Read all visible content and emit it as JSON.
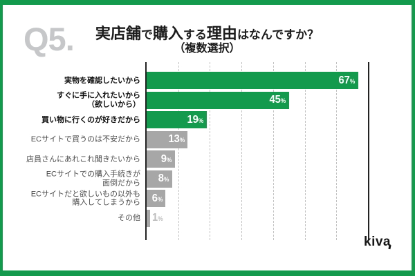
{
  "question_number": "Q5.",
  "title": {
    "line1": "実店舗で購入する理由はなんですか？",
    "line1_segments": [
      {
        "text": "実店舗",
        "emph": true
      },
      {
        "text": "で",
        "emph": false
      },
      {
        "text": "購入",
        "emph": true
      },
      {
        "text": "する",
        "emph": false
      },
      {
        "text": "理由",
        "emph": true
      },
      {
        "text": "はなんですか？",
        "emph": false
      }
    ],
    "line2": "（複数選択）"
  },
  "chart_data": {
    "type": "bar",
    "orientation": "horizontal",
    "title": "実店舗で購入する理由はなんですか？（複数選択）",
    "unit": "%",
    "xlim": [
      0,
      70
    ],
    "gridline_interval": 10,
    "grid": "dashed-vertical",
    "categories": [
      "実物を確認したいから",
      "すぐに手に入れたいから（欲しいから）",
      "買い物に行くのが好きだから",
      "ECサイトで買うのは不安だから",
      "店員さんにあれこれ聞きたいから",
      "ECサイトでの購入手続きが面倒だから",
      "ECサイトだと欲しいもの以外も購入してしまうから",
      "その他"
    ],
    "values": [
      67,
      45,
      19,
      13,
      9,
      8,
      6,
      1
    ],
    "rows": [
      {
        "label_lines": [
          "実物を確認したいから"
        ],
        "value": 67,
        "display": "67",
        "highlight": true
      },
      {
        "label_lines": [
          "すぐに手に入れたいから",
          "（欲しいから）"
        ],
        "value": 45,
        "display": "45",
        "highlight": true
      },
      {
        "label_lines": [
          "買い物に行くのが好きだから"
        ],
        "value": 19,
        "display": "19",
        "highlight": true
      },
      {
        "label_lines": [
          "ECサイトで買うのは不安だから"
        ],
        "value": 13,
        "display": "13",
        "highlight": false
      },
      {
        "label_lines": [
          "店員さんにあれこれ聞きたいから"
        ],
        "value": 9,
        "display": "9",
        "highlight": false
      },
      {
        "label_lines": [
          "ECサイトでの購入手続きが",
          "面倒だから"
        ],
        "value": 8,
        "display": "8",
        "highlight": false
      },
      {
        "label_lines": [
          "ECサイトだと欲しいもの以外も",
          "購入してしまうから"
        ],
        "value": 6,
        "display": "6",
        "highlight": false
      },
      {
        "label_lines": [
          "その他"
        ],
        "value": 1,
        "display": "1",
        "highlight": false
      }
    ]
  },
  "colors": {
    "accent_green": "#149a4c",
    "bar_gray": "#a7a7a7",
    "q_number_gray": "#c5c7c9",
    "value_outside_gray": "#bdbdbd"
  },
  "logo": {
    "text": "kiva"
  }
}
